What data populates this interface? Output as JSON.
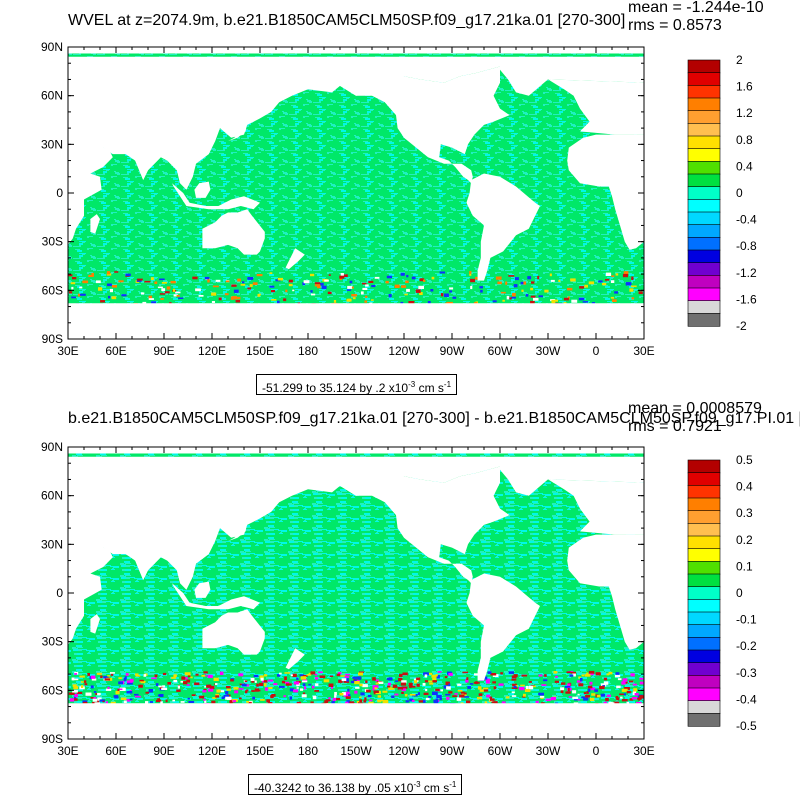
{
  "panels": [
    {
      "title": "WVEL at z=2074.9m, b.e21.B1850CAM5CLM50SP.f09_g17.21ka.01 [270-300]",
      "stats": {
        "mean": "mean = -1.244e-10",
        "rms": "rms = 0.8573"
      },
      "range": {
        "text": "-51.299 to 35.124 by .2 x10",
        "exp": "-3",
        "unit": " cm s",
        "unit_exp": "-1"
      },
      "colorbar": {
        "labels": [
          "2",
          "1.6",
          "1.2",
          "0.8",
          "0.4",
          "0",
          "-0.4",
          "-0.8",
          "-1.2",
          "-1.6",
          "-2"
        ],
        "colors": [
          "#b30000",
          "#e00000",
          "#ff3300",
          "#ff7f00",
          "#ff9f30",
          "#ffbf50",
          "#ffe000",
          "#ffff00",
          "#50e000",
          "#00e040",
          "#00ffc8",
          "#00ffff",
          "#00d8ff",
          "#00a8ff",
          "#0070ff",
          "#0000e0",
          "#7000d0",
          "#c000c0",
          "#ff00ff",
          "#d8d8d8",
          "#707070"
        ]
      }
    },
    {
      "title": "b.e21.B1850CAM5CLM50SP.f09_g17.21ka.01 [270-300] - b.e21.B1850CAM5CLM50SP.f09_g17.PI.01 [",
      "stats": {
        "mean": "mean = 0.0008579",
        "rms": "rms = 0.7921"
      },
      "range": {
        "text": "-40.3242 to 36.138 by .05 x10",
        "exp": "-3",
        "unit": " cm s",
        "unit_exp": "-1"
      },
      "colorbar": {
        "labels": [
          "0.5",
          "0.4",
          "0.3",
          "0.2",
          "0.1",
          "0",
          "-0.1",
          "-0.2",
          "-0.3",
          "-0.4",
          "-0.5"
        ],
        "colors": [
          "#b30000",
          "#e00000",
          "#ff3300",
          "#ff7f00",
          "#ff9f30",
          "#ffbf50",
          "#ffe000",
          "#ffff00",
          "#50e000",
          "#00e040",
          "#00ffc8",
          "#00ffff",
          "#00d8ff",
          "#00a8ff",
          "#0070ff",
          "#0000e0",
          "#7000d0",
          "#c000c0",
          "#ff00ff",
          "#d8d8d8",
          "#707070"
        ]
      }
    }
  ],
  "axes": {
    "x_ticks": [
      "30E",
      "60E",
      "90E",
      "120E",
      "150E",
      "180",
      "150W",
      "120W",
      "90W",
      "60W",
      "30W",
      "0",
      "30E"
    ],
    "y_ticks": [
      "90N",
      "60N",
      "30N",
      "0",
      "30S",
      "60S",
      "90S"
    ]
  },
  "map_colors": {
    "ocean_main": "#00e868",
    "ocean_light": "#20f0c0",
    "ocean_cyan": "#00f8e8",
    "land": "#ffffff",
    "southern_red": "#c81010",
    "southern_blue": "#1030ff",
    "southern_yellow": "#f0e000"
  }
}
